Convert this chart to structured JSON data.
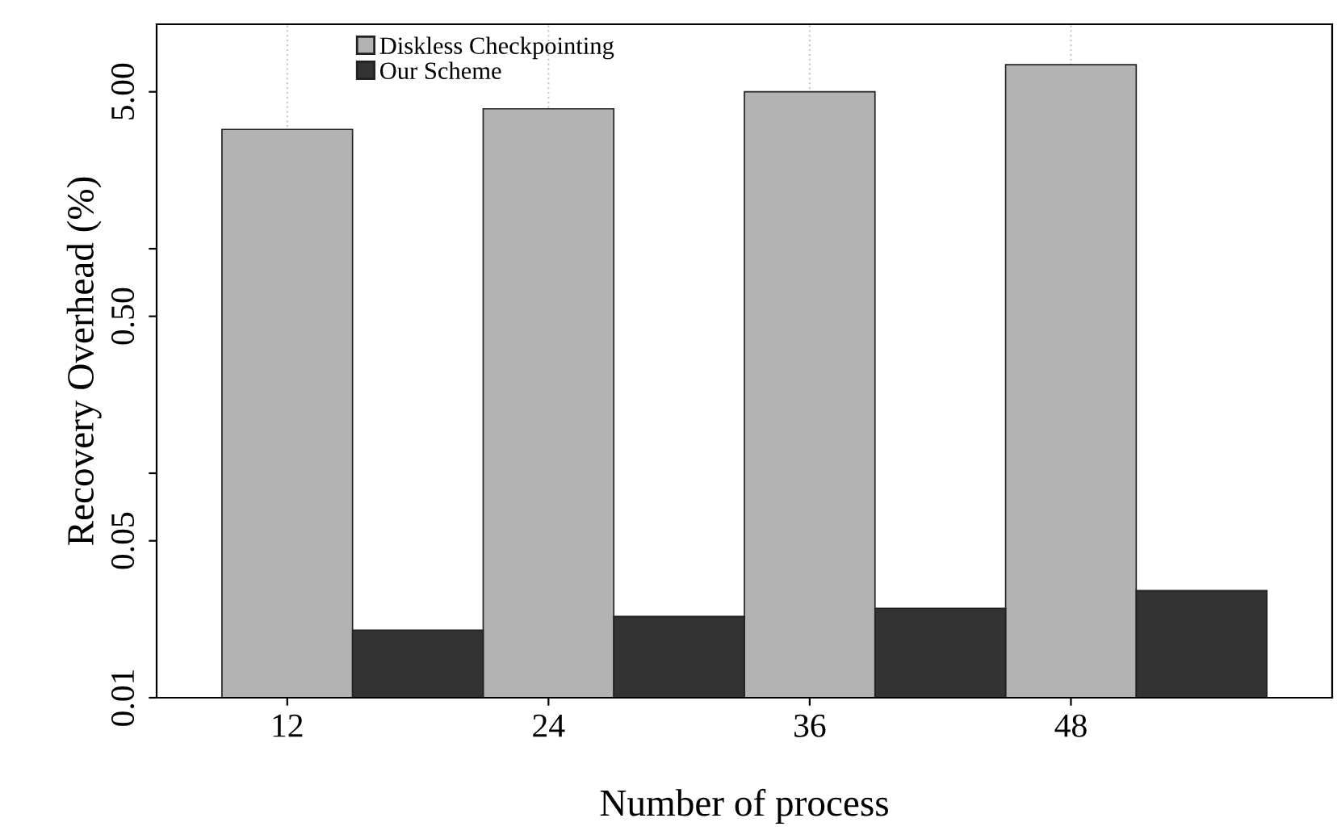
{
  "chart_data": {
    "type": "bar",
    "xlabel": "Number of process",
    "ylabel": "Recovery Overhead (%)",
    "categories": [
      "12",
      "24",
      "36",
      "48"
    ],
    "series": [
      {
        "name": "Diskless Checkpointing",
        "color": "#b3b3b3",
        "values": [
          3.4,
          4.2,
          5.0,
          6.6
        ]
      },
      {
        "name": "Our Scheme",
        "color": "#333333",
        "values": [
          0.02,
          0.023,
          0.025,
          0.03
        ]
      }
    ],
    "log": "y",
    "ylim": [
      0.01,
      10
    ],
    "yticks": [
      {
        "value": 0.01,
        "label": "0.01"
      },
      {
        "value": 0.05,
        "label": "0.05"
      },
      {
        "value": 0.1,
        "label": null
      },
      {
        "value": 0.5,
        "label": "0.50"
      },
      {
        "value": 1,
        "label": null
      },
      {
        "value": 5,
        "label": "5.00"
      }
    ],
    "grid": "x",
    "legend": "top left"
  }
}
